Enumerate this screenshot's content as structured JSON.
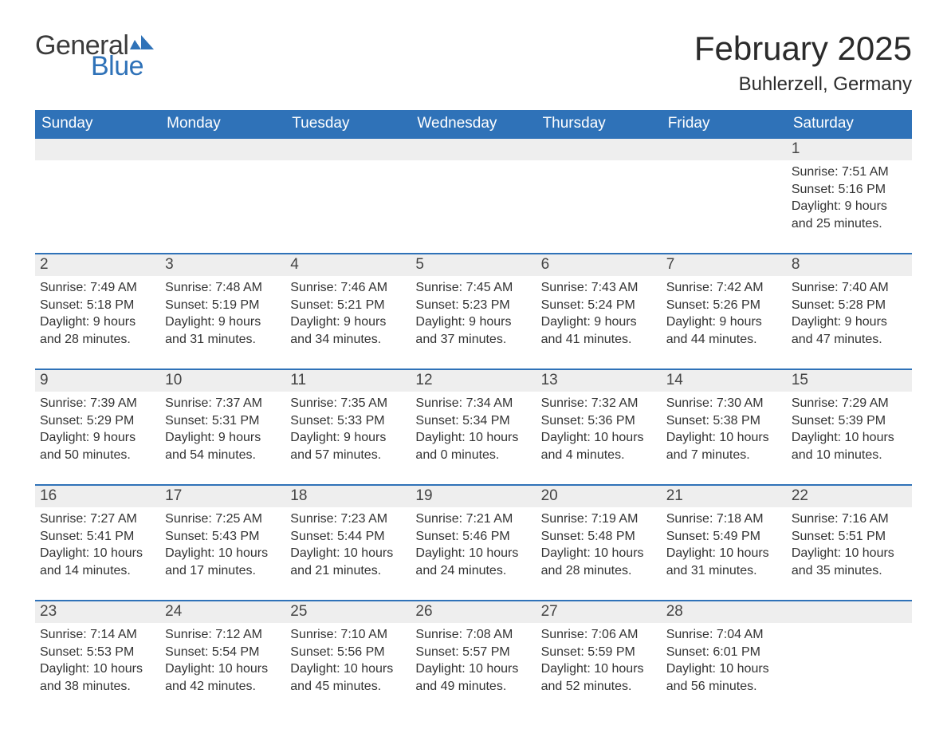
{
  "brand": {
    "word1": "General",
    "word2": "Blue",
    "word1_color": "#3b3b3b",
    "word2_color": "#2f72b8",
    "flag_color": "#2f72b8"
  },
  "title": "February 2025",
  "location": "Buhlerzell, Germany",
  "colors": {
    "header_bg": "#2f72b8",
    "header_text": "#ffffff",
    "daynum_bg": "#eeeeee",
    "rule": "#2f72b8",
    "body_text": "#333333",
    "page_bg": "#ffffff"
  },
  "typography": {
    "title_fontsize": 42,
    "location_fontsize": 24,
    "dow_fontsize": 19,
    "daynum_fontsize": 19,
    "detail_fontsize": 16
  },
  "layout": {
    "columns": 7,
    "rows": 5,
    "week_start": "Sunday"
  },
  "days_of_week": [
    "Sunday",
    "Monday",
    "Tuesday",
    "Wednesday",
    "Thursday",
    "Friday",
    "Saturday"
  ],
  "weeks": [
    [
      {
        "day": "",
        "sunrise": "",
        "sunset": "",
        "daylight": ""
      },
      {
        "day": "",
        "sunrise": "",
        "sunset": "",
        "daylight": ""
      },
      {
        "day": "",
        "sunrise": "",
        "sunset": "",
        "daylight": ""
      },
      {
        "day": "",
        "sunrise": "",
        "sunset": "",
        "daylight": ""
      },
      {
        "day": "",
        "sunrise": "",
        "sunset": "",
        "daylight": ""
      },
      {
        "day": "",
        "sunrise": "",
        "sunset": "",
        "daylight": ""
      },
      {
        "day": "1",
        "sunrise": "7:51 AM",
        "sunset": "5:16 PM",
        "daylight": "9 hours and 25 minutes."
      }
    ],
    [
      {
        "day": "2",
        "sunrise": "7:49 AM",
        "sunset": "5:18 PM",
        "daylight": "9 hours and 28 minutes."
      },
      {
        "day": "3",
        "sunrise": "7:48 AM",
        "sunset": "5:19 PM",
        "daylight": "9 hours and 31 minutes."
      },
      {
        "day": "4",
        "sunrise": "7:46 AM",
        "sunset": "5:21 PM",
        "daylight": "9 hours and 34 minutes."
      },
      {
        "day": "5",
        "sunrise": "7:45 AM",
        "sunset": "5:23 PM",
        "daylight": "9 hours and 37 minutes."
      },
      {
        "day": "6",
        "sunrise": "7:43 AM",
        "sunset": "5:24 PM",
        "daylight": "9 hours and 41 minutes."
      },
      {
        "day": "7",
        "sunrise": "7:42 AM",
        "sunset": "5:26 PM",
        "daylight": "9 hours and 44 minutes."
      },
      {
        "day": "8",
        "sunrise": "7:40 AM",
        "sunset": "5:28 PM",
        "daylight": "9 hours and 47 minutes."
      }
    ],
    [
      {
        "day": "9",
        "sunrise": "7:39 AM",
        "sunset": "5:29 PM",
        "daylight": "9 hours and 50 minutes."
      },
      {
        "day": "10",
        "sunrise": "7:37 AM",
        "sunset": "5:31 PM",
        "daylight": "9 hours and 54 minutes."
      },
      {
        "day": "11",
        "sunrise": "7:35 AM",
        "sunset": "5:33 PM",
        "daylight": "9 hours and 57 minutes."
      },
      {
        "day": "12",
        "sunrise": "7:34 AM",
        "sunset": "5:34 PM",
        "daylight": "10 hours and 0 minutes."
      },
      {
        "day": "13",
        "sunrise": "7:32 AM",
        "sunset": "5:36 PM",
        "daylight": "10 hours and 4 minutes."
      },
      {
        "day": "14",
        "sunrise": "7:30 AM",
        "sunset": "5:38 PM",
        "daylight": "10 hours and 7 minutes."
      },
      {
        "day": "15",
        "sunrise": "7:29 AM",
        "sunset": "5:39 PM",
        "daylight": "10 hours and 10 minutes."
      }
    ],
    [
      {
        "day": "16",
        "sunrise": "7:27 AM",
        "sunset": "5:41 PM",
        "daylight": "10 hours and 14 minutes."
      },
      {
        "day": "17",
        "sunrise": "7:25 AM",
        "sunset": "5:43 PM",
        "daylight": "10 hours and 17 minutes."
      },
      {
        "day": "18",
        "sunrise": "7:23 AM",
        "sunset": "5:44 PM",
        "daylight": "10 hours and 21 minutes."
      },
      {
        "day": "19",
        "sunrise": "7:21 AM",
        "sunset": "5:46 PM",
        "daylight": "10 hours and 24 minutes."
      },
      {
        "day": "20",
        "sunrise": "7:19 AM",
        "sunset": "5:48 PM",
        "daylight": "10 hours and 28 minutes."
      },
      {
        "day": "21",
        "sunrise": "7:18 AM",
        "sunset": "5:49 PM",
        "daylight": "10 hours and 31 minutes."
      },
      {
        "day": "22",
        "sunrise": "7:16 AM",
        "sunset": "5:51 PM",
        "daylight": "10 hours and 35 minutes."
      }
    ],
    [
      {
        "day": "23",
        "sunrise": "7:14 AM",
        "sunset": "5:53 PM",
        "daylight": "10 hours and 38 minutes."
      },
      {
        "day": "24",
        "sunrise": "7:12 AM",
        "sunset": "5:54 PM",
        "daylight": "10 hours and 42 minutes."
      },
      {
        "day": "25",
        "sunrise": "7:10 AM",
        "sunset": "5:56 PM",
        "daylight": "10 hours and 45 minutes."
      },
      {
        "day": "26",
        "sunrise": "7:08 AM",
        "sunset": "5:57 PM",
        "daylight": "10 hours and 49 minutes."
      },
      {
        "day": "27",
        "sunrise": "7:06 AM",
        "sunset": "5:59 PM",
        "daylight": "10 hours and 52 minutes."
      },
      {
        "day": "28",
        "sunrise": "7:04 AM",
        "sunset": "6:01 PM",
        "daylight": "10 hours and 56 minutes."
      },
      {
        "day": "",
        "sunrise": "",
        "sunset": "",
        "daylight": ""
      }
    ]
  ],
  "labels": {
    "sunrise": "Sunrise: ",
    "sunset": "Sunset: ",
    "daylight": "Daylight: "
  }
}
